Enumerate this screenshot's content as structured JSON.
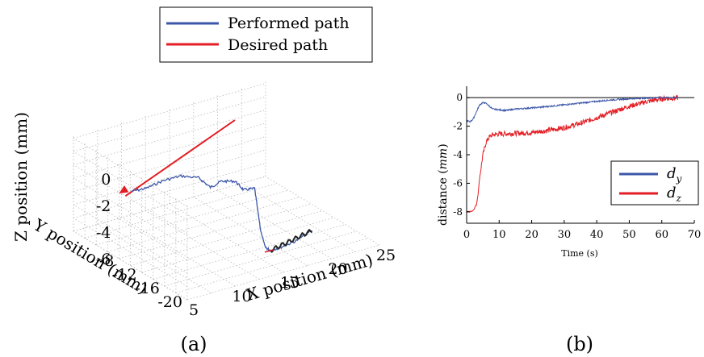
{
  "chart_data": [
    {
      "type": "line",
      "panel_label": "(a)",
      "legend": [
        {
          "name": "Performed path",
          "color": "#3c57a9"
        },
        {
          "name": "Desired path",
          "color": "#e31e24"
        }
      ],
      "xlabel": "X position (mm)",
      "ylabel": "Y position (mm)",
      "zlabel": "Z position (mm)",
      "x_ticks": [
        "5",
        "10",
        "15",
        "20",
        "25"
      ],
      "y_ticks": [
        "-8",
        "-12",
        "-16",
        "-20"
      ],
      "z_ticks": [
        "0",
        "-2",
        "-4",
        "-6"
      ],
      "xlim": [
        5,
        25
      ],
      "ylim": [
        -8,
        -20
      ],
      "zlim": [
        -6,
        0
      ],
      "series": [
        {
          "name": "Performed path",
          "x": [
            6.3,
            7.5,
            9.0,
            10.5,
            12.0,
            12.8,
            13.5,
            14.5,
            15.0,
            15.8,
            16.0,
            16.2,
            16.5,
            17.5,
            19.0,
            21.0
          ],
          "y": [
            -8.0,
            -8.5,
            -9.0,
            -9.6,
            -10.2,
            -10.9,
            -11.6,
            -12.4,
            -13.0,
            -13.6,
            -14.3,
            -14.8,
            -15.2,
            -15.4,
            -15.3,
            -14.9
          ],
          "z": [
            -1.2,
            -1.1,
            -0.7,
            -0.5,
            -0.8,
            -1.5,
            -1.0,
            -1.0,
            -1.6,
            -1.5,
            -4.5,
            -5.7,
            -5.9,
            -5.8,
            -5.7,
            -5.4
          ]
        },
        {
          "name": "Desired path",
          "x": [
            5.0,
            21.8
          ],
          "y": [
            -8.0,
            0.0
          ],
          "z": [
            -1.1,
            -1.1
          ]
        }
      ]
    },
    {
      "type": "line",
      "panel_label": "(b)",
      "xlabel": "Time (s)",
      "ylabel": "distance (mm)",
      "xlim": [
        0,
        70
      ],
      "ylim": [
        -8.8,
        0.8
      ],
      "x_ticks": [
        "0",
        "10",
        "20",
        "30",
        "40",
        "50",
        "60",
        "70"
      ],
      "y_ticks": [
        "0",
        "-2",
        "-4",
        "-6",
        "-8"
      ],
      "legend": [
        {
          "name": "d_y",
          "color": "#3c57a9"
        },
        {
          "name": "d_z",
          "color": "#e31e24"
        }
      ],
      "series": [
        {
          "name": "d_y",
          "x": [
            0,
            1,
            2,
            3,
            4,
            5,
            6,
            7,
            8,
            10,
            12,
            15,
            20,
            25,
            30,
            35,
            40,
            45,
            50,
            55,
            60,
            65
          ],
          "y": [
            -1.6,
            -1.7,
            -1.5,
            -1.0,
            -0.5,
            -0.35,
            -0.4,
            -0.6,
            -0.8,
            -0.85,
            -0.9,
            -0.8,
            -0.72,
            -0.62,
            -0.5,
            -0.38,
            -0.26,
            -0.15,
            -0.08,
            -0.04,
            0.0,
            0.0
          ]
        },
        {
          "name": "d_z",
          "x": [
            0,
            1,
            2,
            3,
            3.5,
            4,
            5,
            6,
            7,
            8,
            10,
            15,
            20,
            25,
            30,
            35,
            40,
            45,
            50,
            55,
            60,
            62,
            65
          ],
          "y": [
            -8.0,
            -8.0,
            -7.9,
            -7.5,
            -6.8,
            -5.6,
            -4.0,
            -3.1,
            -2.75,
            -2.6,
            -2.55,
            -2.5,
            -2.45,
            -2.3,
            -2.1,
            -1.8,
            -1.4,
            -1.0,
            -0.6,
            -0.3,
            -0.08,
            -0.05,
            -0.02
          ]
        }
      ]
    }
  ]
}
